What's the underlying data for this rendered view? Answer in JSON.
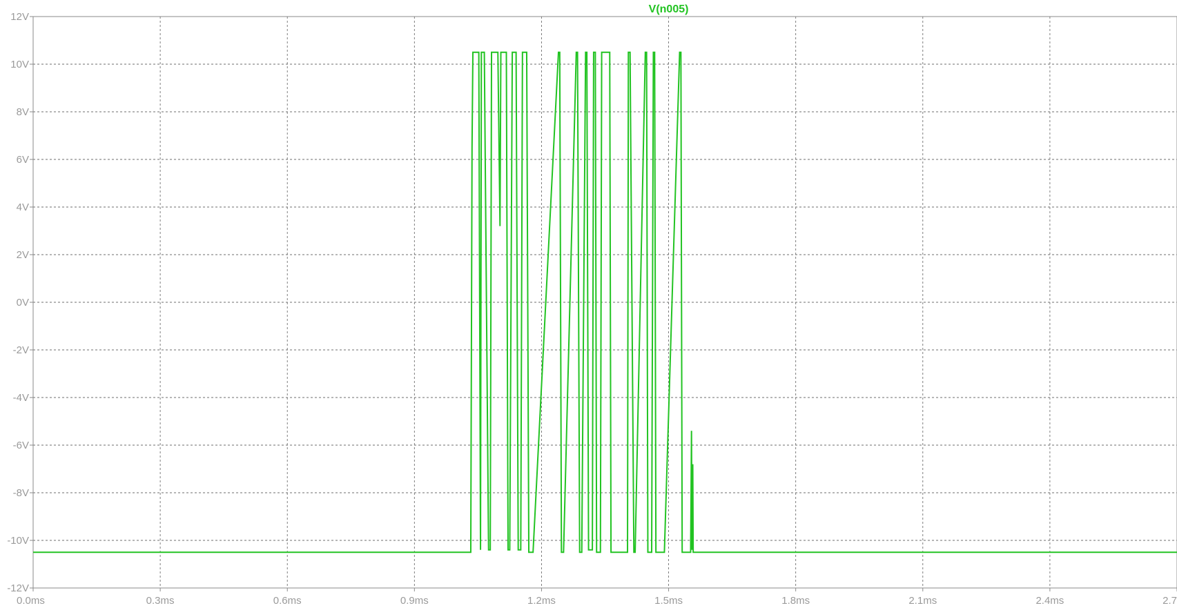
{
  "chart_data": {
    "type": "line",
    "title": "V(n005)",
    "xlabel": "",
    "ylabel": "",
    "xlim": [
      0,
      2.7
    ],
    "ylim": [
      -12,
      12
    ],
    "x_ticks": [
      0.0,
      0.3,
      0.6,
      0.9,
      1.2,
      1.5,
      1.8,
      2.1,
      2.4,
      2.7
    ],
    "x_tick_labels": [
      "0.0ms",
      "0.3ms",
      "0.6ms",
      "0.9ms",
      "1.2ms",
      "1.5ms",
      "1.8ms",
      "2.1ms",
      "2.4ms",
      "2.7"
    ],
    "y_ticks": [
      12,
      10,
      8,
      6,
      4,
      2,
      0,
      -2,
      -4,
      -6,
      -8,
      -10,
      -12
    ],
    "y_tick_labels": [
      "12V",
      "10V",
      "8V",
      "6V",
      "4V",
      "2V",
      "0V",
      "-2V",
      "-4V",
      "-6V",
      "-8V",
      "-10V",
      "-12V"
    ],
    "grid": true,
    "color": "#22c322",
    "series": [
      {
        "name": "V(n005)",
        "x": [
          0,
          1.033,
          1.036,
          1.038,
          1.042,
          1.052,
          1.056,
          1.058,
          1.06,
          1.063,
          1.065,
          1.075,
          1.079,
          1.082,
          1.086,
          1.091,
          1.094,
          1.097,
          1.102,
          1.104,
          1.106,
          1.108,
          1.115,
          1.117,
          1.121,
          1.125,
          1.131,
          1.137,
          1.14,
          1.145,
          1.151,
          1.155,
          1.158,
          1.163,
          1.165,
          1.17,
          1.177,
          1.18,
          1.24,
          1.243,
          1.247,
          1.252,
          1.282,
          1.285,
          1.29,
          1.295,
          1.304,
          1.307,
          1.311,
          1.32,
          1.323,
          1.327,
          1.33,
          1.339,
          1.342,
          1.361,
          1.364,
          1.403,
          1.405,
          1.409,
          1.418,
          1.421,
          1.445,
          1.448,
          1.451,
          1.46,
          1.464,
          1.467,
          1.47,
          1.484,
          1.487,
          1.49,
          1.526,
          1.529,
          1.532,
          1.538,
          1.541,
          1.544,
          1.552,
          1.554,
          1.555,
          1.557,
          1.558,
          1.56,
          1.562,
          1.565,
          2.7
        ],
        "y": [
          -10.5,
          -10.5,
          6.5,
          10.5,
          10.5,
          10.5,
          -10.4,
          10.5,
          10.5,
          10.5,
          10.5,
          -10.4,
          -10.4,
          10.5,
          10.5,
          10.5,
          10.5,
          10.5,
          3.2,
          10.5,
          10.5,
          10.5,
          10.5,
          10.5,
          -10.4,
          -10.4,
          10.5,
          10.5,
          10.5,
          -10.4,
          -10.4,
          10.5,
          10.5,
          10.5,
          10.5,
          -10.5,
          -10.5,
          -10.5,
          10.5,
          10.5,
          -10.5,
          -10.5,
          10.5,
          10.5,
          -10.5,
          -10.5,
          10.5,
          10.5,
          -10.4,
          -10.4,
          10.5,
          10.5,
          -10.5,
          -10.5,
          10.5,
          10.5,
          -10.5,
          -10.5,
          10.5,
          10.5,
          -10.5,
          -10.5,
          10.5,
          10.5,
          -10.5,
          -10.5,
          10.5,
          10.5,
          -10.5,
          -10.5,
          -10.5,
          -10.5,
          10.5,
          10.5,
          -10.5,
          -10.5,
          -10.5,
          -10.5,
          -10.5,
          -5.4,
          -10.4,
          -6.8,
          -10.5,
          -10.5,
          -10.5,
          -10.5,
          -10.5
        ]
      }
    ]
  }
}
